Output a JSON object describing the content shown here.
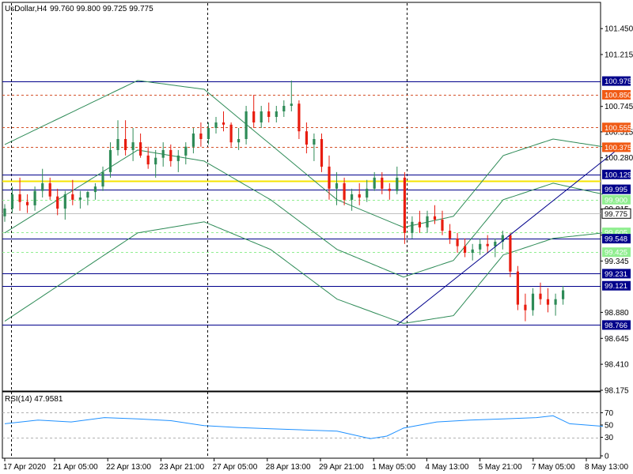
{
  "header": {
    "symbol": "UsDollar,H4",
    "ohlc": "99.760 99.800 99.725 99.775"
  },
  "rsi_header": {
    "label": "RSI(14) 47.9581"
  },
  "colors": {
    "bull": "#2e8b57",
    "bear": "#e81c0f",
    "band": "#2e8b57",
    "blue_line": "#00008b",
    "red_line": "#d4522a",
    "yellow_line": "#f5e300",
    "green_dash": "#90ee90",
    "rsi": "#1e90ff",
    "grid": "#000000",
    "tag_blue": "#00008b",
    "tag_orange": "#f05a14",
    "tag_green": "#90ee90"
  },
  "chart_data": [
    {
      "type": "candlestick",
      "title": "UsDollar,H4",
      "ylim": [
        98.175,
        101.68
      ],
      "y_ticks": [
        "101.450",
        "101.215",
        "100.745",
        "100.515",
        "100.280",
        "99.815",
        "99.580",
        "99.345",
        "98.880",
        "98.645",
        "98.410",
        "98.175"
      ],
      "x_ticks": [
        "17 Apr 2020",
        "21 Apr 05:00",
        "22 Apr 13:00",
        "23 Apr 21:00",
        "27 Apr 05:00",
        "28 Apr 13:00",
        "29 Apr 21:00",
        "1 May 05:00",
        "4 May 13:00",
        "5 May 21:00",
        "7 May 05:00",
        "8 May 13:00"
      ],
      "x_tick_index": [
        0,
        15,
        31,
        47,
        63,
        79,
        95,
        111,
        127,
        143,
        159,
        175
      ],
      "vlines_index": [
        2,
        61,
        121
      ],
      "levels": [
        {
          "value": "100.975",
          "kind": "blue"
        },
        {
          "value": "100.850",
          "kind": "red"
        },
        {
          "value": "100.555",
          "kind": "red"
        },
        {
          "value": "100.375",
          "kind": "red"
        },
        {
          "value": "100.129",
          "kind": "blue"
        },
        {
          "value": "99.995",
          "kind": "blue"
        },
        {
          "value": "99.900",
          "kind": "green"
        },
        {
          "value": "99.775",
          "kind": "current"
        },
        {
          "value": "99.605",
          "kind": "green"
        },
        {
          "value": "99.548",
          "kind": "blue"
        },
        {
          "value": "99.425",
          "kind": "green"
        },
        {
          "value": "99.231",
          "kind": "blue"
        },
        {
          "value": "99.121",
          "kind": "blue"
        },
        {
          "value": "98.766",
          "kind": "blue"
        }
      ],
      "yellow_level": 100.07,
      "trendline": {
        "from": [
          118,
          98.766
        ],
        "to": [
          185,
          100.37
        ]
      },
      "candles": [
        [
          99.75,
          99.86,
          99.7,
          99.82
        ],
        [
          99.82,
          100.02,
          99.78,
          99.95
        ],
        [
          99.95,
          100.1,
          99.8,
          99.88
        ],
        [
          99.88,
          99.95,
          99.78,
          99.85
        ],
        [
          99.85,
          100.02,
          99.8,
          99.98
        ],
        [
          99.98,
          100.18,
          99.92,
          100.05
        ],
        [
          100.05,
          100.1,
          99.9,
          99.93
        ],
        [
          99.93,
          100.0,
          99.76,
          99.82
        ],
        [
          99.82,
          99.98,
          99.72,
          99.95
        ],
        [
          99.95,
          100.08,
          99.85,
          99.9
        ],
        [
          99.9,
          99.98,
          99.82,
          99.92
        ],
        [
          99.92,
          99.98,
          99.85,
          99.97
        ],
        [
          99.97,
          100.05,
          99.9,
          100.02
        ],
        [
          100.02,
          100.2,
          99.98,
          100.15
        ],
        [
          100.15,
          100.42,
          100.1,
          100.35
        ],
        [
          100.35,
          100.62,
          100.3,
          100.45
        ],
        [
          100.45,
          100.62,
          100.3,
          100.35
        ],
        [
          100.35,
          100.55,
          100.25,
          100.42
        ],
        [
          100.42,
          100.5,
          100.28,
          100.3
        ],
        [
          100.3,
          100.38,
          100.18,
          100.22
        ],
        [
          100.22,
          100.35,
          100.1,
          100.28
        ],
        [
          100.28,
          100.42,
          100.2,
          100.35
        ],
        [
          100.35,
          100.4,
          100.2,
          100.25
        ],
        [
          100.25,
          100.35,
          100.15,
          100.3
        ],
        [
          100.3,
          100.42,
          100.22,
          100.38
        ],
        [
          100.38,
          100.55,
          100.32,
          100.5
        ],
        [
          100.5,
          100.6,
          100.38,
          100.45
        ],
        [
          100.45,
          100.6,
          100.4,
          100.55
        ],
        [
          100.55,
          100.65,
          100.5,
          100.6
        ],
        [
          100.6,
          100.7,
          100.52,
          100.58
        ],
        [
          100.58,
          100.6,
          100.38,
          100.42
        ],
        [
          100.42,
          100.55,
          100.35,
          100.45
        ],
        [
          100.45,
          100.75,
          100.4,
          100.7
        ],
        [
          100.7,
          100.85,
          100.55,
          100.6
        ],
        [
          100.6,
          100.75,
          100.55,
          100.7
        ],
        [
          100.7,
          100.78,
          100.6,
          100.65
        ],
        [
          100.65,
          100.75,
          100.6,
          100.7
        ],
        [
          100.7,
          100.8,
          100.65,
          100.75
        ],
        [
          100.75,
          100.98,
          100.7,
          100.77
        ],
        [
          100.77,
          100.8,
          100.45,
          100.52
        ],
        [
          100.52,
          100.6,
          100.32,
          100.4
        ],
        [
          100.4,
          100.5,
          100.25,
          100.45
        ],
        [
          100.45,
          100.5,
          100.15,
          100.2
        ],
        [
          100.2,
          100.3,
          99.9,
          100.0
        ],
        [
          100.0,
          100.15,
          99.85,
          100.05
        ],
        [
          100.05,
          100.1,
          99.85,
          99.9
        ],
        [
          99.9,
          100.0,
          99.8,
          99.95
        ],
        [
          99.95,
          100.05,
          99.85,
          99.92
        ],
        [
          99.92,
          100.08,
          99.88,
          100.0
        ],
        [
          100.0,
          100.15,
          99.98,
          100.1
        ],
        [
          100.1,
          100.15,
          99.95,
          100.0
        ],
        [
          100.0,
          100.05,
          99.9,
          99.98
        ],
        [
          99.98,
          100.2,
          99.95,
          100.1
        ],
        [
          100.1,
          100.15,
          99.5,
          99.6
        ],
        [
          99.6,
          99.75,
          99.55,
          99.7
        ],
        [
          99.7,
          99.8,
          99.6,
          99.65
        ],
        [
          99.65,
          99.8,
          99.6,
          99.75
        ],
        [
          99.75,
          99.85,
          99.68,
          99.72
        ],
        [
          99.72,
          99.8,
          99.58,
          99.62
        ],
        [
          99.62,
          99.68,
          99.5,
          99.55
        ],
        [
          99.55,
          99.6,
          99.42,
          99.48
        ],
        [
          99.48,
          99.55,
          99.38,
          99.42
        ],
        [
          99.42,
          99.5,
          99.35,
          99.45
        ],
        [
          99.45,
          99.55,
          99.4,
          99.5
        ],
        [
          99.5,
          99.58,
          99.42,
          99.48
        ],
        [
          99.48,
          99.55,
          99.38,
          99.52
        ],
        [
          99.52,
          99.62,
          99.45,
          99.58
        ],
        [
          99.58,
          99.6,
          99.2,
          99.25
        ],
        [
          99.25,
          99.3,
          98.9,
          98.95
        ],
        [
          98.95,
          99.05,
          98.8,
          98.9
        ],
        [
          98.9,
          99.1,
          98.85,
          99.05
        ],
        [
          99.05,
          99.15,
          98.95,
          99.0
        ],
        [
          99.0,
          99.1,
          98.88,
          98.95
        ],
        [
          98.95,
          99.05,
          98.85,
          99.0
        ],
        [
          99.0,
          99.12,
          98.95,
          99.08
        ]
      ],
      "bands": {
        "upper": [
          [
            0,
            100.4
          ],
          [
            40,
            100.98
          ],
          [
            60,
            100.9
          ],
          [
            80,
            100.4
          ],
          [
            100,
            99.9
          ],
          [
            120,
            99.65
          ],
          [
            135,
            99.75
          ],
          [
            150,
            100.3
          ],
          [
            165,
            100.45
          ],
          [
            180,
            100.38
          ]
        ],
        "middle": [
          [
            0,
            99.6
          ],
          [
            40,
            100.35
          ],
          [
            60,
            100.25
          ],
          [
            80,
            99.9
          ],
          [
            100,
            99.45
          ],
          [
            120,
            99.2
          ],
          [
            135,
            99.35
          ],
          [
            150,
            99.9
          ],
          [
            165,
            100.05
          ],
          [
            180,
            99.95
          ]
        ],
        "lower": [
          [
            0,
            98.8
          ],
          [
            40,
            99.6
          ],
          [
            60,
            99.7
          ],
          [
            80,
            99.45
          ],
          [
            100,
            99.0
          ],
          [
            120,
            98.78
          ],
          [
            135,
            98.85
          ],
          [
            150,
            99.4
          ],
          [
            165,
            99.55
          ],
          [
            180,
            99.6
          ]
        ]
      }
    },
    {
      "type": "line",
      "title": "RSI(14) 47.9581",
      "ylim": [
        0,
        100
      ],
      "y_ticks": [
        "70",
        "50",
        "30",
        "0"
      ],
      "levels": [
        70,
        30
      ],
      "x_index": [
        0,
        10,
        20,
        30,
        40,
        50,
        60,
        70,
        80,
        90,
        100,
        110,
        115,
        120,
        130,
        140,
        150,
        160,
        165,
        170,
        180
      ],
      "values": [
        52,
        58,
        55,
        62,
        60,
        57,
        49,
        46,
        44,
        42,
        40,
        28,
        32,
        45,
        55,
        58,
        60,
        62,
        65,
        52,
        48
      ]
    }
  ]
}
